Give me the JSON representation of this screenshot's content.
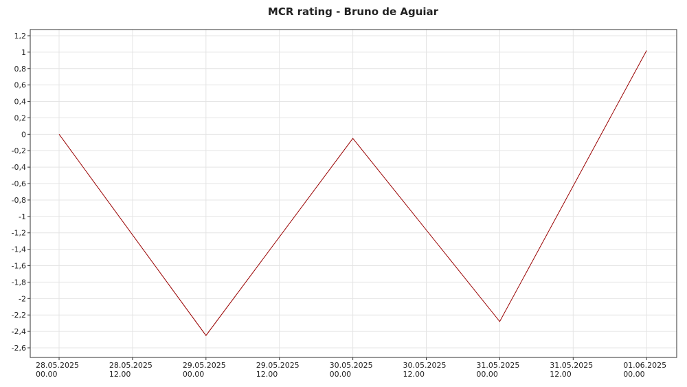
{
  "chart_data": {
    "type": "line",
    "title": "MCR rating - Bruno de Aguiar",
    "x": [
      "28.05.2025 00.00",
      "29.05.2025 00.00",
      "30.05.2025 00.00",
      "31.05.2025 00.00",
      "01.06.2025 00.00"
    ],
    "series": [
      {
        "name": "MCR rating",
        "color": "#990000",
        "values": [
          0,
          -2.45,
          -0.05,
          -2.28,
          1.02
        ]
      }
    ],
    "xlim": [
      "27.05.2025 19.17",
      "01.06.2025 04.55"
    ],
    "xticks": [
      "28.05.2025 00.00",
      "28.05.2025 12.00",
      "29.05.2025 00.00",
      "29.05.2025 12.00",
      "30.05.2025 00.00",
      "30.05.2025 12.00",
      "31.05.2025 00.00",
      "31.05.2025 12.00",
      "01.06.2025 00.00"
    ],
    "ylim": [
      -2.717,
      1.275
    ],
    "yticks": [
      {
        "value": 1.2,
        "label": "1,2"
      },
      1,
      {
        "value": 0.8,
        "label": "0,8"
      },
      {
        "value": 0.6,
        "label": "0,6"
      },
      {
        "value": 0.4,
        "label": "0,4"
      },
      {
        "value": 0.2,
        "label": "0,2"
      },
      0,
      {
        "value": -0.2,
        "label": "-0,2"
      },
      {
        "value": -0.4,
        "label": "-0,4"
      },
      {
        "value": -0.6,
        "label": "-0,6"
      },
      {
        "value": -0.8,
        "label": "-0,8"
      },
      -1,
      {
        "value": -1.2,
        "label": "-1,2"
      },
      {
        "value": -1.4,
        "label": "-1,4"
      },
      {
        "value": -1.6,
        "label": "-1,6"
      },
      {
        "value": -1.8,
        "label": "-1,8"
      },
      -2,
      {
        "value": -2.2,
        "label": "-2,2"
      },
      {
        "value": -2.4,
        "label": "-2,4"
      },
      {
        "value": -2.6,
        "label": "-2,6"
      }
    ],
    "grid": true
  }
}
